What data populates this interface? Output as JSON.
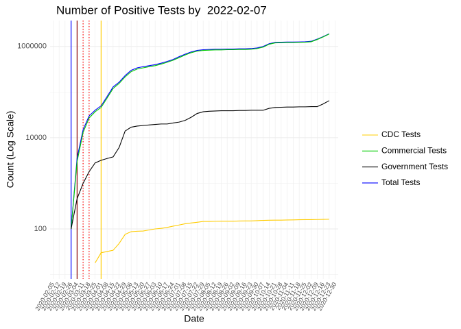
{
  "chart_data": {
    "type": "line",
    "title": "Number of Positive Tests by  2022-02-07",
    "x_label": "Date",
    "y_label": "Count (Log Scale)",
    "categories": [
      "2020-02-05",
      "2020-02-12",
      "2020-02-19",
      "2020-02-26",
      "2020-03-04",
      "2020-03-11",
      "2020-03-18",
      "2020-03-25",
      "2020-04-01",
      "2020-04-08",
      "2020-04-15",
      "2020-04-22",
      "2020-04-29",
      "2020-05-06",
      "2020-05-13",
      "2020-05-20",
      "2020-05-27",
      "2020-06-03",
      "2020-06-10",
      "2020-06-17",
      "2020-06-24",
      "2020-07-01",
      "2020-07-08",
      "2020-07-15",
      "2020-07-22",
      "2020-07-29",
      "2020-08-05",
      "2020-08-12",
      "2020-08-19",
      "2020-08-26",
      "2020-09-02",
      "2020-09-09",
      "2020-09-16",
      "2020-09-23",
      "2020-09-30",
      "2020-10-07",
      "2020-10-14",
      "2020-10-21",
      "2020-10-28",
      "2020-11-04",
      "2020-11-11",
      "2020-11-18",
      "2020-11-25",
      "2020-12-02",
      "2020-12-09",
      "2020-12-16",
      "2020-12-23",
      "2020-12-30"
    ],
    "series": [
      {
        "name": "Total Tests",
        "color": "#0000ff",
        "values": [
          null,
          null,
          null,
          100,
          3600,
          15000,
          30000,
          40000,
          50000,
          80000,
          130000,
          165000,
          230000,
          300000,
          340000,
          360000,
          380000,
          400000,
          430000,
          470000,
          520000,
          600000,
          680000,
          760000,
          820000,
          850000,
          860000,
          870000,
          870000,
          880000,
          880000,
          890000,
          890000,
          900000,
          930000,
          1000000,
          1150000,
          1230000,
          1240000,
          1250000,
          1250000,
          1260000,
          1270000,
          1300000,
          1450000,
          1650000,
          1900000,
          null
        ]
      },
      {
        "name": "Commercial Tests",
        "color": "#00cc00",
        "values": [
          null,
          null,
          null,
          100,
          3000,
          13000,
          27000,
          37000,
          46000,
          74000,
          120000,
          155000,
          215000,
          280000,
          320000,
          340000,
          360000,
          380000,
          410000,
          450000,
          500000,
          570000,
          650000,
          730000,
          790000,
          820000,
          830000,
          840000,
          840000,
          850000,
          850000,
          860000,
          860000,
          870000,
          900000,
          970000,
          1120000,
          1200000,
          1210000,
          1220000,
          1220000,
          1230000,
          1240000,
          1270000,
          1420000,
          1620000,
          1880000,
          null
        ]
      },
      {
        "name": "Government Tests",
        "color": "#000000",
        "values": [
          null,
          null,
          null,
          100,
          460,
          1000,
          1800,
          2800,
          3200,
          3500,
          3800,
          6100,
          14000,
          17000,
          18000,
          18500,
          19000,
          19500,
          20000,
          20000,
          21000,
          22000,
          24000,
          28000,
          34000,
          37000,
          38000,
          38500,
          39000,
          39000,
          39000,
          39500,
          39500,
          40000,
          40000,
          40000,
          44000,
          46000,
          46500,
          47000,
          47000,
          47500,
          47500,
          48000,
          48000,
          55000,
          65000,
          null
        ]
      },
      {
        "name": "CDC Tests",
        "color": "#ffcc00",
        "values": [
          null,
          null,
          null,
          null,
          null,
          null,
          null,
          18,
          30,
          32,
          34,
          48,
          76,
          87,
          89,
          90,
          95,
          100,
          103,
          108,
          115,
          122,
          130,
          135,
          140,
          146,
          146,
          147,
          148,
          148,
          148,
          149,
          150,
          150,
          152,
          154,
          155,
          156,
          156,
          157,
          158,
          159,
          160,
          160,
          161,
          162,
          163,
          null
        ]
      }
    ],
    "legend_order": [
      3,
      1,
      2,
      0
    ],
    "vlines": [
      {
        "x": "2020-02-26",
        "color": "#0000ff",
        "linetype": "solid"
      },
      {
        "x": "2020-03-04",
        "color": "#8b0000",
        "linetype": "solid"
      },
      {
        "x": "2020-03-11",
        "color": "#ff0000",
        "linetype": "dotted"
      },
      {
        "x": "2020-03-18",
        "color": "#ff0000",
        "linetype": "dotted"
      },
      {
        "x": "2020-04-01",
        "color": "#ffcc00",
        "linetype": "solid"
      }
    ],
    "log_y": true,
    "ylim": [
      8,
      3700000
    ],
    "yticks": [
      100,
      10000,
      1000000
    ],
    "grid": true,
    "legend": "right"
  }
}
